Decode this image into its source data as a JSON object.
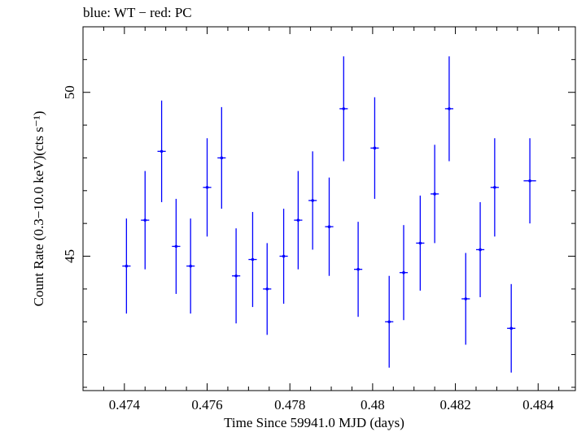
{
  "header_text": "blue: WT − red: PC",
  "chart_data": {
    "type": "scatter",
    "title": "",
    "xlabel": "Time Since 59941.0 MJD (days)",
    "ylabel": "Count Rate (0.3−10.0 keV)(cts s⁻¹)",
    "xlim": [
      0.473,
      0.4849
    ],
    "ylim": [
      40.9,
      52.0
    ],
    "x_ticks": [
      0.474,
      0.476,
      0.478,
      0.48,
      0.482,
      0.484
    ],
    "x_tick_labels": [
      "0.474",
      "0.476",
      "0.478",
      "0.48",
      "0.482",
      "0.484"
    ],
    "y_ticks": [
      45,
      50
    ],
    "y_tick_labels": [
      "45",
      "50"
    ],
    "grid": false,
    "series": [
      {
        "color": "#0000ff",
        "x": [
          0.47405,
          0.4745,
          0.4749,
          0.47525,
          0.4756,
          0.476,
          0.47635,
          0.4767,
          0.4771,
          0.47745,
          0.47785,
          0.4782,
          0.47855,
          0.47895,
          0.4793,
          0.47965,
          0.48005,
          0.4804,
          0.48075,
          0.48115,
          0.4815,
          0.48185,
          0.48225,
          0.4826,
          0.48295,
          0.48335,
          0.4838
        ],
        "xerr": [
          0.0001,
          0.0001,
          0.0001,
          0.0001,
          0.0001,
          0.0001,
          0.0001,
          0.0001,
          0.0001,
          0.0001,
          0.0001,
          0.0001,
          0.0001,
          0.0001,
          0.0001,
          0.0001,
          0.0001,
          0.0001,
          0.0001,
          0.0001,
          0.0001,
          0.0001,
          0.0001,
          0.0001,
          0.0001,
          0.0001,
          0.00015
        ],
        "y": [
          44.7,
          46.1,
          48.2,
          45.3,
          44.7,
          47.1,
          48.0,
          44.4,
          44.9,
          44.0,
          45.0,
          46.1,
          46.7,
          45.9,
          49.5,
          44.6,
          48.3,
          43.0,
          44.5,
          45.4,
          46.9,
          49.5,
          43.7,
          45.2,
          47.1,
          42.8,
          47.3
        ],
        "yerr": [
          1.45,
          1.5,
          1.55,
          1.45,
          1.45,
          1.5,
          1.55,
          1.45,
          1.45,
          1.4,
          1.45,
          1.5,
          1.5,
          1.5,
          1.6,
          1.45,
          1.55,
          1.4,
          1.45,
          1.45,
          1.5,
          1.6,
          1.4,
          1.45,
          1.5,
          1.35,
          1.3
        ]
      }
    ]
  }
}
